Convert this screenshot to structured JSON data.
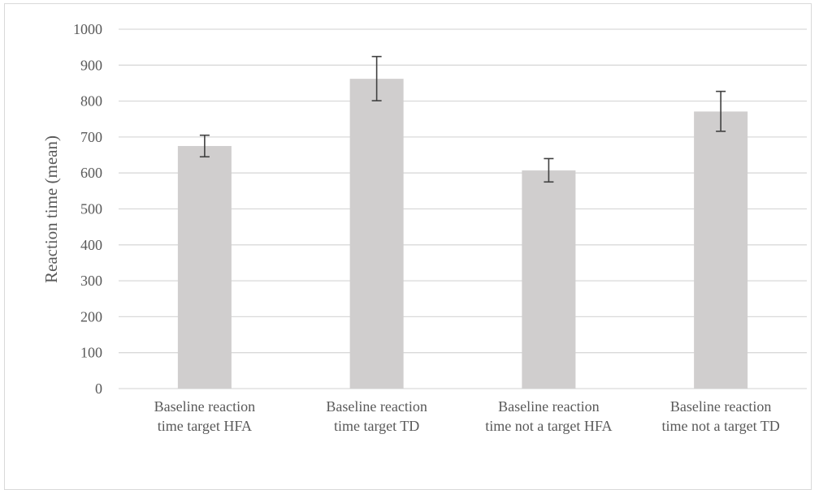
{
  "chart_data": {
    "type": "bar",
    "title": "",
    "xlabel": "",
    "ylabel": "Reaction time (mean)",
    "ylim": [
      0,
      1000
    ],
    "yticks": [
      0,
      100,
      200,
      300,
      400,
      500,
      600,
      700,
      800,
      900,
      1000
    ],
    "grid": true,
    "legend": "none",
    "categories": [
      [
        "Baseline reaction",
        "time target HFA"
      ],
      [
        "Baseline reaction",
        "time target TD"
      ],
      [
        "Baseline reaction",
        "time not a target HFA"
      ],
      [
        "Baseline reaction",
        "time not a target TD"
      ]
    ],
    "values": [
      675,
      862,
      607,
      771
    ],
    "error_bars": [
      [
        645,
        705
      ],
      [
        801,
        924
      ],
      [
        575,
        640
      ],
      [
        716,
        827
      ]
    ],
    "colors": {
      "bar": "#d0cece",
      "grid": "#d9d9d9",
      "error": "#404040",
      "text": "#595959"
    }
  }
}
